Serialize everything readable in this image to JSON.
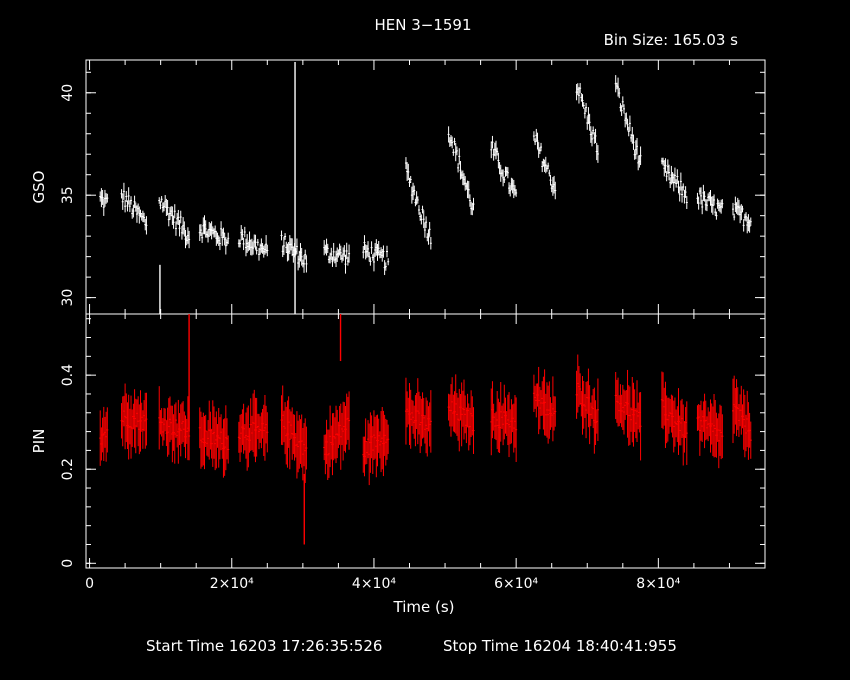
{
  "title": "HEN 3−1591",
  "bin_size_label": "Bin Size:  165.03  s",
  "footer": {
    "start": "Start Time 16203  17:26:35:526",
    "stop": "Stop Time 16204  18:40:41:955"
  },
  "chart_data": [
    {
      "type": "scatter",
      "name": "GSO",
      "ylabel": "GSO",
      "xlabel": "",
      "color": "#ffffff",
      "xlim": [
        -500,
        95000
      ],
      "ylim": [
        29.2,
        41.6
      ],
      "yticks": [
        30,
        35,
        40
      ],
      "ytick_labels": [
        "30",
        "35",
        "40"
      ],
      "error_bars": true,
      "segments": [
        {
          "x0": 1500,
          "x1": 2500,
          "y0": 34.8,
          "y1": 34.6
        },
        {
          "x0": 4500,
          "x1": 8000,
          "y0": 35.0,
          "y1": 33.6
        },
        {
          "x0": 9800,
          "x1": 14000,
          "y0": 34.8,
          "y1": 33.0
        },
        {
          "x0": 15500,
          "x1": 19500,
          "y0": 33.4,
          "y1": 32.8
        },
        {
          "x0": 21000,
          "x1": 25000,
          "y0": 33.0,
          "y1": 32.2
        },
        {
          "x0": 27000,
          "x1": 30500,
          "y0": 32.7,
          "y1": 31.8
        },
        {
          "x0": 33000,
          "x1": 36500,
          "y0": 32.2,
          "y1": 32.0
        },
        {
          "x0": 38500,
          "x1": 42000,
          "y0": 32.3,
          "y1": 31.8
        },
        {
          "x0": 44500,
          "x1": 48000,
          "y0": 36.2,
          "y1": 32.9
        },
        {
          "x0": 50500,
          "x1": 54000,
          "y0": 38.2,
          "y1": 34.3
        },
        {
          "x0": 56500,
          "x1": 60000,
          "y0": 37.3,
          "y1": 34.9
        },
        {
          "x0": 62500,
          "x1": 65500,
          "y0": 37.8,
          "y1": 35.3
        },
        {
          "x0": 68500,
          "x1": 71500,
          "y0": 40.4,
          "y1": 37.2
        },
        {
          "x0": 74000,
          "x1": 77500,
          "y0": 40.3,
          "y1": 36.5
        },
        {
          "x0": 80500,
          "x1": 84000,
          "y0": 36.3,
          "y1": 35.0
        },
        {
          "x0": 85500,
          "x1": 89000,
          "y0": 34.9,
          "y1": 34.2
        },
        {
          "x0": 90500,
          "x1": 93000,
          "y0": 34.2,
          "y1": 33.8
        }
      ],
      "outliers": [
        {
          "x": 28900,
          "y": 41.5,
          "ylo": 29.2
        },
        {
          "x": 9900,
          "y": 29.2,
          "ylo": 31.6
        }
      ]
    },
    {
      "type": "scatter",
      "name": "PIN",
      "ylabel": "PIN",
      "xlabel": "Time (s)",
      "color": "#ff0000",
      "xlim": [
        -500,
        95000
      ],
      "ylim": [
        -0.01,
        0.53
      ],
      "yticks": [
        0,
        0.2,
        0.4
      ],
      "ytick_labels": [
        "0",
        "0.2",
        "0.4"
      ],
      "xticks": [
        0,
        20000,
        40000,
        60000,
        80000
      ],
      "xtick_labels": [
        "0",
        "2×10⁴",
        "4×10⁴",
        "6×10⁴",
        "8×10⁴"
      ],
      "error_bars": true,
      "segments": [
        {
          "x0": 1500,
          "x1": 2500,
          "y0": 0.27,
          "y1": 0.28
        },
        {
          "x0": 4500,
          "x1": 8000,
          "y0": 0.31,
          "y1": 0.3
        },
        {
          "x0": 9800,
          "x1": 14000,
          "y0": 0.3,
          "y1": 0.28
        },
        {
          "x0": 15500,
          "x1": 19500,
          "y0": 0.27,
          "y1": 0.26
        },
        {
          "x0": 21000,
          "x1": 25000,
          "y0": 0.28,
          "y1": 0.28
        },
        {
          "x0": 27000,
          "x1": 30500,
          "y0": 0.3,
          "y1": 0.24
        },
        {
          "x0": 33000,
          "x1": 36500,
          "y0": 0.24,
          "y1": 0.3
        },
        {
          "x0": 38500,
          "x1": 42000,
          "y0": 0.24,
          "y1": 0.28
        },
        {
          "x0": 44500,
          "x1": 48000,
          "y0": 0.32,
          "y1": 0.29
        },
        {
          "x0": 50500,
          "x1": 54000,
          "y0": 0.33,
          "y1": 0.3
        },
        {
          "x0": 56500,
          "x1": 60000,
          "y0": 0.31,
          "y1": 0.3
        },
        {
          "x0": 62500,
          "x1": 65500,
          "y0": 0.35,
          "y1": 0.31
        },
        {
          "x0": 68500,
          "x1": 71500,
          "y0": 0.37,
          "y1": 0.31
        },
        {
          "x0": 74000,
          "x1": 77500,
          "y0": 0.35,
          "y1": 0.3
        },
        {
          "x0": 80500,
          "x1": 84000,
          "y0": 0.33,
          "y1": 0.28
        },
        {
          "x0": 85500,
          "x1": 89000,
          "y0": 0.3,
          "y1": 0.27
        },
        {
          "x0": 90500,
          "x1": 93000,
          "y0": 0.33,
          "y1": 0.28
        }
      ],
      "outliers": [
        {
          "x": 35300,
          "y": 0.53,
          "ylo": 0.43
        },
        {
          "x": 30200,
          "y": 0.19,
          "ylo": 0.04
        },
        {
          "x": 14000,
          "y": 0.53,
          "ylo": 0.28
        }
      ]
    }
  ]
}
